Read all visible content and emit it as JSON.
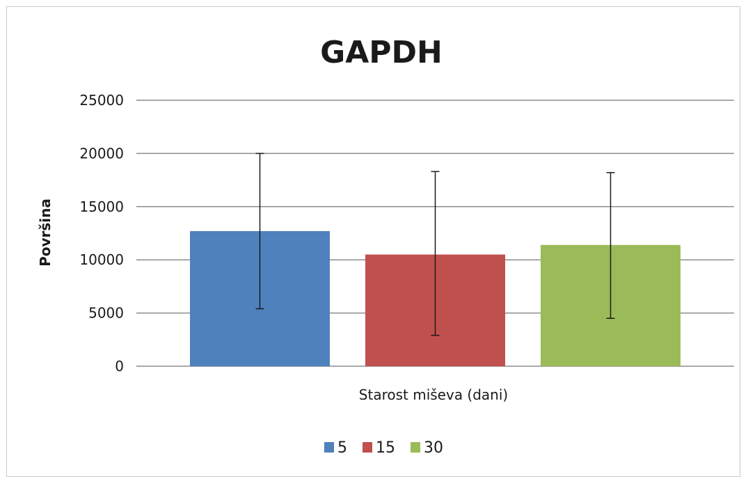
{
  "chart_data": {
    "type": "bar",
    "title": "GAPDH",
    "xlabel": "Starost miševa (dani)",
    "ylabel": "Površina",
    "ylim": [
      0,
      25000
    ],
    "yticks": [
      0,
      5000,
      10000,
      15000,
      20000,
      25000
    ],
    "grid": true,
    "legend_position": "bottom",
    "series": [
      {
        "name": "5",
        "value": 12700,
        "error_low": 5400,
        "error_high": 20000,
        "color": "#4f81bd"
      },
      {
        "name": "15",
        "value": 10500,
        "error_low": 2900,
        "error_high": 18300,
        "color": "#c0504d"
      },
      {
        "name": "30",
        "value": 11400,
        "error_low": 4500,
        "error_high": 18200,
        "color": "#9bbb59"
      }
    ]
  }
}
